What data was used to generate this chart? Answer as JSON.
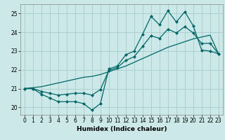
{
  "xlabel": "Humidex (Indice chaleur)",
  "background_color": "#cce8e8",
  "grid_color": "#aad0d0",
  "line_color": "#006666",
  "xlim": [
    -0.5,
    23.5
  ],
  "ylim": [
    19.6,
    25.5
  ],
  "yticks": [
    20,
    21,
    22,
    23,
    24,
    25
  ],
  "xticks": [
    0,
    1,
    2,
    3,
    4,
    5,
    6,
    7,
    8,
    9,
    10,
    11,
    12,
    13,
    14,
    15,
    16,
    17,
    18,
    19,
    20,
    21,
    22,
    23
  ],
  "line1_x": [
    0,
    1,
    2,
    3,
    4,
    5,
    6,
    7,
    8,
    9,
    10,
    11,
    12,
    13,
    14,
    15,
    16,
    17,
    18,
    19,
    20,
    21,
    22,
    23
  ],
  "line1_y": [
    21.0,
    21.0,
    20.7,
    20.5,
    20.3,
    20.3,
    20.3,
    20.2,
    19.85,
    20.2,
    22.05,
    22.2,
    22.8,
    23.0,
    23.9,
    24.85,
    24.4,
    25.15,
    24.55,
    25.1,
    24.35,
    23.05,
    23.0,
    22.85
  ],
  "line2_x": [
    0,
    1,
    2,
    3,
    4,
    5,
    6,
    7,
    8,
    9,
    10,
    11,
    12,
    13,
    14,
    15,
    16,
    17,
    18,
    19,
    20,
    21,
    22,
    23
  ],
  "line2_y": [
    21.0,
    21.05,
    21.1,
    21.2,
    21.3,
    21.4,
    21.5,
    21.6,
    21.65,
    21.75,
    21.9,
    22.05,
    22.2,
    22.4,
    22.6,
    22.8,
    23.0,
    23.2,
    23.35,
    23.5,
    23.65,
    23.75,
    23.85,
    22.85
  ],
  "line3_x": [
    0,
    1,
    2,
    3,
    4,
    5,
    6,
    7,
    8,
    9,
    10,
    11,
    12,
    13,
    14,
    15,
    16,
    17,
    18,
    19,
    20,
    21,
    22,
    23
  ],
  "line3_y": [
    21.0,
    21.0,
    20.85,
    20.75,
    20.65,
    20.7,
    20.75,
    20.75,
    20.65,
    20.95,
    21.97,
    22.12,
    22.5,
    22.7,
    23.25,
    23.82,
    23.68,
    24.17,
    23.97,
    24.3,
    23.97,
    23.4,
    23.42,
    22.85
  ],
  "xlabel_fontsize": 6.5,
  "tick_fontsize": 5.5,
  "marker_size": 2.5
}
